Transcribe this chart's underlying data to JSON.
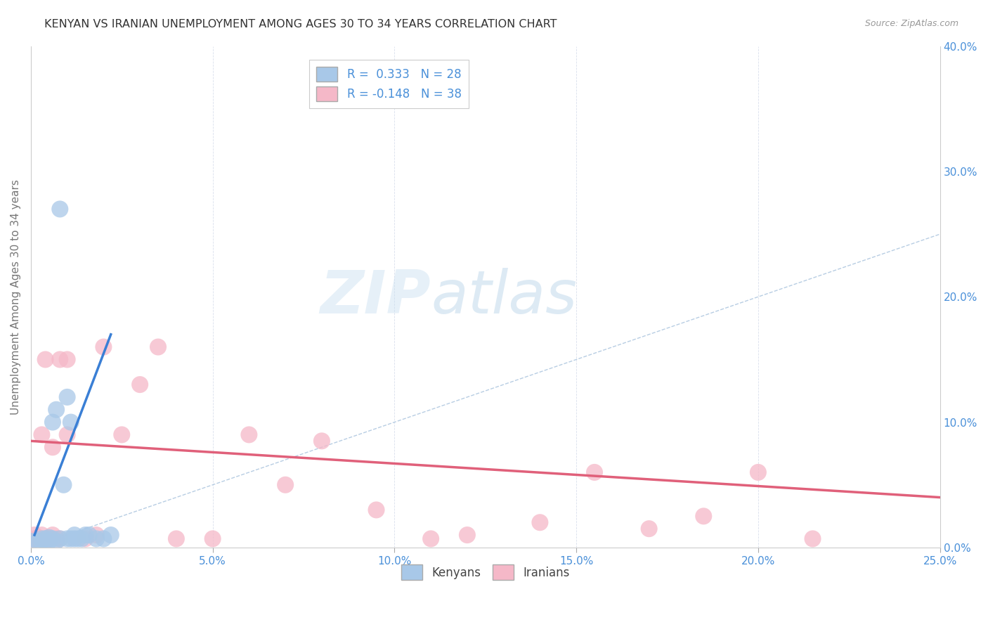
{
  "title": "KENYAN VS IRANIAN UNEMPLOYMENT AMONG AGES 30 TO 34 YEARS CORRELATION CHART",
  "source": "Source: ZipAtlas.com",
  "ylabel": "Unemployment Among Ages 30 to 34 years",
  "xlim": [
    0.0,
    0.25
  ],
  "ylim": [
    0.0,
    0.4
  ],
  "x_ticks": [
    0.0,
    0.05,
    0.1,
    0.15,
    0.2,
    0.25
  ],
  "y_ticks_right": [
    0.0,
    0.1,
    0.2,
    0.3,
    0.4
  ],
  "x_tick_labels": [
    "0.0%",
    "5.0%",
    "10.0%",
    "15.0%",
    "20.0%",
    "25.0%"
  ],
  "y_tick_labels_right": [
    "0.0%",
    "10.0%",
    "20.0%",
    "30.0%",
    "40.0%"
  ],
  "kenyan_color": "#a8c8e8",
  "iranian_color": "#f5b8c8",
  "kenyan_line_color": "#3a7fd5",
  "iranian_line_color": "#e0607a",
  "diagonal_color": "#b0c8e0",
  "watermark_zip": "ZIP",
  "watermark_atlas": "atlas",
  "kenyan_x": [
    0.0,
    0.002,
    0.003,
    0.003,
    0.004,
    0.004,
    0.005,
    0.005,
    0.006,
    0.006,
    0.007,
    0.007,
    0.008,
    0.008,
    0.009,
    0.01,
    0.01,
    0.011,
    0.011,
    0.012,
    0.012,
    0.013,
    0.014,
    0.015,
    0.016,
    0.018,
    0.02,
    0.022
  ],
  "kenyan_y": [
    0.005,
    0.005,
    0.005,
    0.007,
    0.005,
    0.007,
    0.005,
    0.008,
    0.007,
    0.1,
    0.005,
    0.11,
    0.007,
    0.27,
    0.05,
    0.007,
    0.12,
    0.007,
    0.1,
    0.007,
    0.01,
    0.007,
    0.007,
    0.01,
    0.01,
    0.007,
    0.007,
    0.01
  ],
  "iranian_x": [
    0.0,
    0.001,
    0.001,
    0.002,
    0.002,
    0.003,
    0.003,
    0.004,
    0.004,
    0.005,
    0.005,
    0.006,
    0.006,
    0.007,
    0.008,
    0.008,
    0.01,
    0.01,
    0.015,
    0.018,
    0.02,
    0.025,
    0.03,
    0.035,
    0.04,
    0.05,
    0.06,
    0.07,
    0.08,
    0.095,
    0.11,
    0.12,
    0.14,
    0.155,
    0.17,
    0.185,
    0.2,
    0.215
  ],
  "iranian_y": [
    0.005,
    0.007,
    0.01,
    0.005,
    0.008,
    0.01,
    0.09,
    0.007,
    0.15,
    0.007,
    0.007,
    0.01,
    0.08,
    0.007,
    0.007,
    0.15,
    0.09,
    0.15,
    0.007,
    0.01,
    0.16,
    0.09,
    0.13,
    0.16,
    0.007,
    0.007,
    0.09,
    0.05,
    0.085,
    0.03,
    0.007,
    0.01,
    0.02,
    0.06,
    0.015,
    0.025,
    0.06,
    0.007
  ],
  "kenyan_trend_x": [
    0.001,
    0.022
  ],
  "kenyan_trend_y": [
    0.01,
    0.17
  ],
  "iranian_trend_x": [
    0.0,
    0.25
  ],
  "iranian_trend_y": [
    0.085,
    0.04
  ]
}
